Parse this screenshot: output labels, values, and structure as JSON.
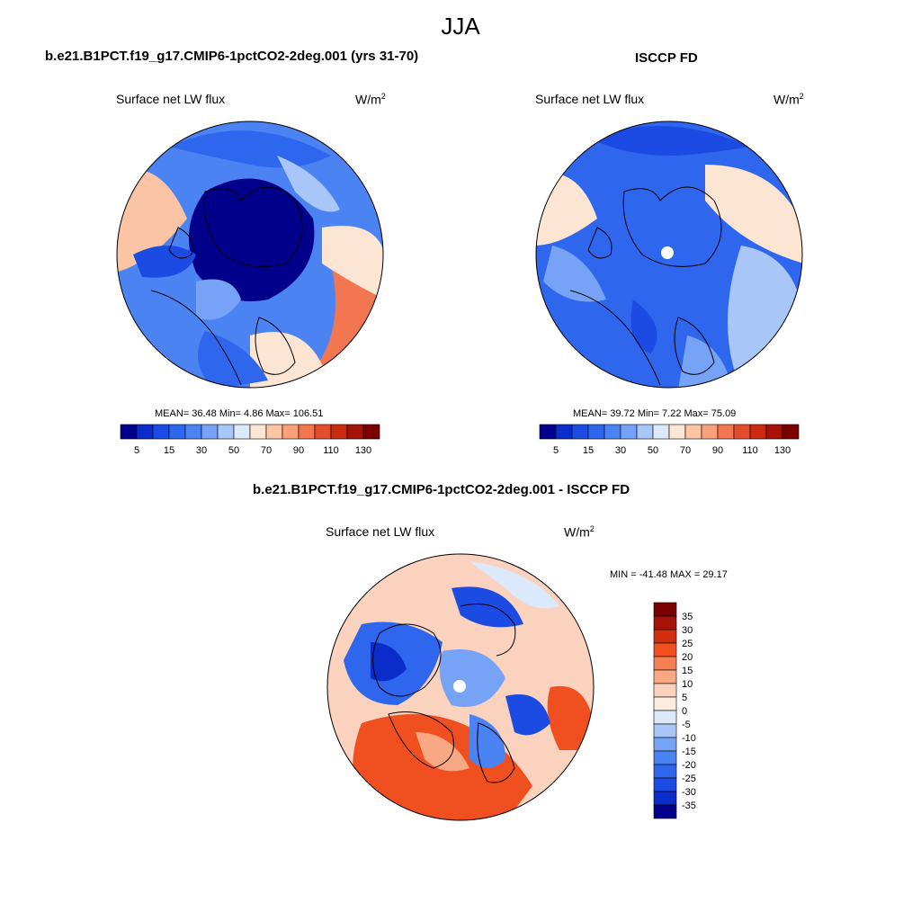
{
  "main_title": "JJA",
  "panels": [
    {
      "title": "b.e21.B1PCT.f19_g17.CMIP6-1pctCO2-2deg.001 (yrs 31-70)",
      "variable": "Surface net LW flux",
      "units_base": "W/m",
      "units_exp": "2",
      "stats": "MEAN=  36.48  Min=   4.86  Max= 106.51",
      "colorbar_ticks": [
        "5",
        "15",
        "30",
        "50",
        "70",
        "90",
        "110",
        "130"
      ]
    },
    {
      "title": "ISCCP FD",
      "variable": "Surface net LW flux",
      "units_base": "W/m",
      "units_exp": "2",
      "stats": "MEAN=  39.72  Min=   7.22  Max=  75.09",
      "colorbar_ticks": [
        "5",
        "15",
        "30",
        "50",
        "70",
        "90",
        "110",
        "130"
      ]
    },
    {
      "title": "b.e21.B1PCT.f19_g17.CMIP6-1pctCO2-2deg.001 - ISCCP FD",
      "variable": "Surface net LW flux",
      "units_base": "W/m",
      "units_exp": "2",
      "stats": "MIN = -41.48 MAX =  29.17",
      "colorbar_ticks": [
        "35",
        "30",
        "25",
        "20",
        "15",
        "10",
        "5",
        "0",
        "-5",
        "-10",
        "-15",
        "-20",
        "-25",
        "-30",
        "-35"
      ]
    }
  ],
  "colors": {
    "abs_scale": [
      "#00008a",
      "#0a2cc8",
      "#1c4be3",
      "#2f66ee",
      "#4b84f2",
      "#76a3f5",
      "#a9c6f8",
      "#dce9fb",
      "#fde5d4",
      "#fbc4a4",
      "#f8a07a",
      "#f27650",
      "#e44d2c",
      "#c92a10",
      "#a51208",
      "#7c0000"
    ],
    "diff_scale": [
      "#7c0000",
      "#a51208",
      "#d02e0e",
      "#f0501f",
      "#f57f54",
      "#f8a883",
      "#fbd2bd",
      "#fdebe0",
      "#dce9fb",
      "#a9c6f8",
      "#76a3f5",
      "#4b84f2",
      "#2f66ee",
      "#1c4be3",
      "#0a2cc8",
      "#00008a"
    ],
    "coastline": "#000000"
  }
}
